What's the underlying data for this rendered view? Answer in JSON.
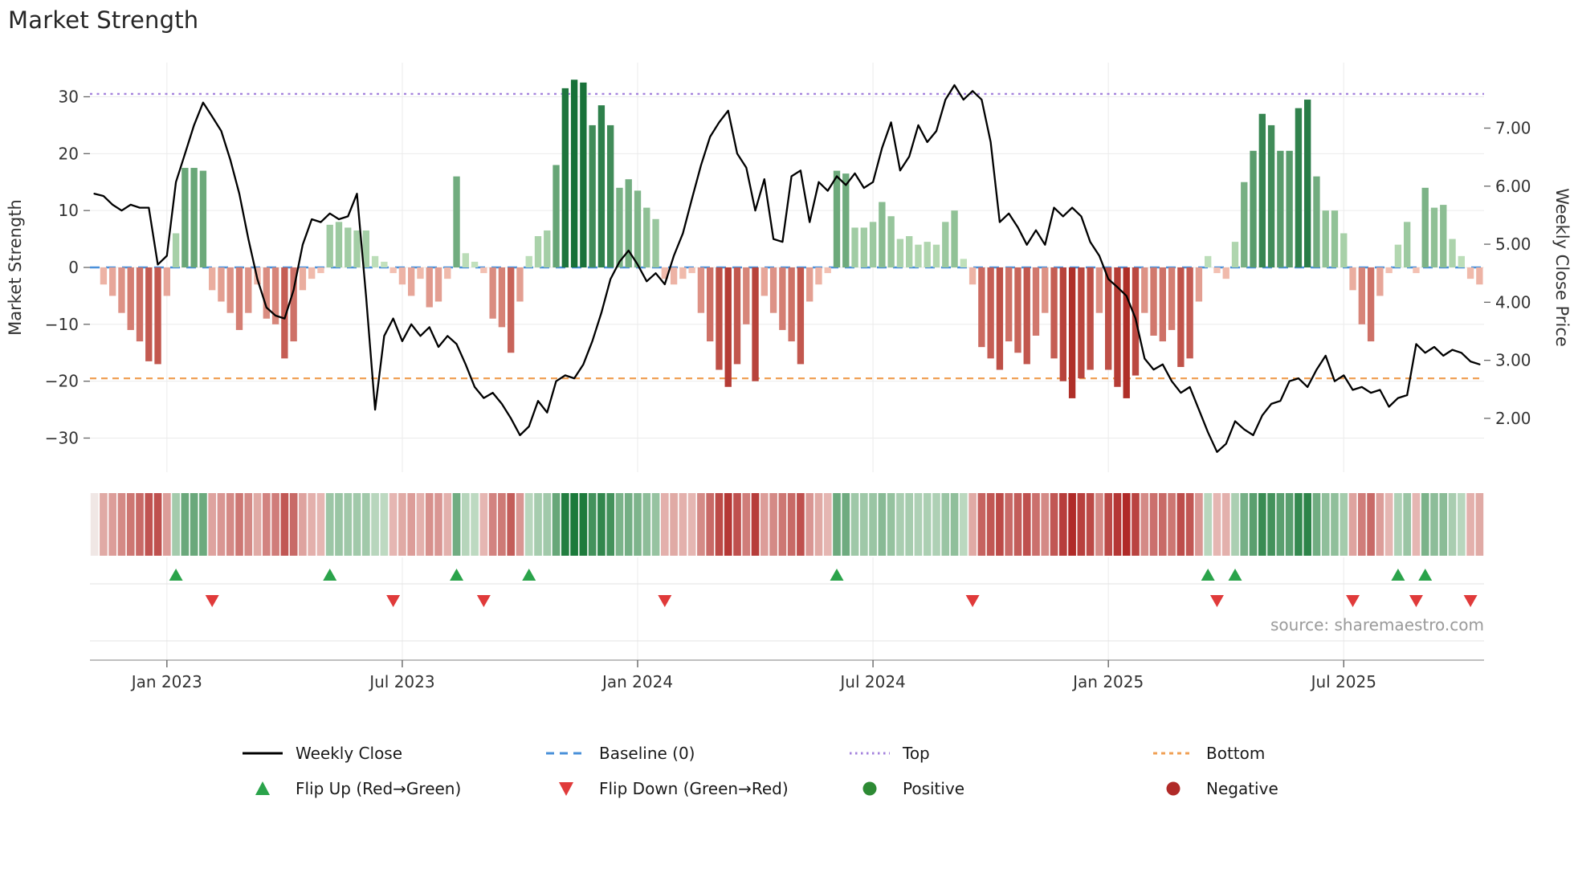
{
  "title": "Market Strength",
  "source": "source: sharemaestro.com",
  "colors": {
    "price_line": "#000000",
    "baseline": "#4a90d9",
    "top_line": "#a583dd",
    "bottom_line": "#f0a055",
    "flip_up": "#2aa34a",
    "flip_down": "#e03a3a",
    "positive_dot": "#2d8a34",
    "negative_dot": "#b02a28",
    "grid": "#ebebeb",
    "axis_text": "#333333",
    "bar_green_dark": "#167038",
    "bar_green_light": "#c7e5c1",
    "bar_red_dark": "#af2f28",
    "bar_red_light": "#f6c7b8"
  },
  "legend": {
    "items": [
      {
        "label": "Weekly Close",
        "glyph": "line",
        "color": "#000000"
      },
      {
        "label": "Baseline (0)",
        "glyph": "dashed-line",
        "color": "#4a90d9",
        "dash": "10 7"
      },
      {
        "label": "Top",
        "glyph": "dotted-line",
        "color": "#a583dd",
        "dash": "2.5 4.5"
      },
      {
        "label": "Bottom",
        "glyph": "dashed-line",
        "color": "#f0a055",
        "dash": "5 5"
      },
      {
        "label": "Flip Up (Red→Green)",
        "glyph": "triangle-up",
        "color": "#2aa34a"
      },
      {
        "label": "Flip Down (Green→Red)",
        "glyph": "triangle-down",
        "color": "#e03a3a"
      },
      {
        "label": "Positive",
        "glyph": "circle",
        "color": "#2d8a34"
      },
      {
        "label": "Negative",
        "glyph": "circle",
        "color": "#b02a28"
      }
    ]
  },
  "chart_data": {
    "type": "bar",
    "subtype": "combo: strength bars (left axis) + weekly close line (right axis) + heatmap strip + flip markers",
    "title": "Market Strength",
    "n_points": 154,
    "x_unit": "week",
    "x_ticks": [
      {
        "i": 8,
        "label": "Jan 2023"
      },
      {
        "i": 34,
        "label": "Jul 2023"
      },
      {
        "i": 60,
        "label": "Jan 2024"
      },
      {
        "i": 86,
        "label": "Jul 2024"
      },
      {
        "i": 112,
        "label": "Jan 2025"
      },
      {
        "i": 138,
        "label": "Jul 2025"
      }
    ],
    "left_axis": {
      "label": "Market Strength",
      "range": [
        -36,
        36
      ],
      "ticks": [
        {
          "v": 30,
          "label": "30"
        },
        {
          "v": 20,
          "label": "20"
        },
        {
          "v": 10,
          "label": "10"
        },
        {
          "v": 0,
          "label": "0"
        },
        {
          "v": -10,
          "label": "−10"
        },
        {
          "v": -20,
          "label": "−20"
        },
        {
          "v": -30,
          "label": "−30"
        }
      ]
    },
    "right_axis": {
      "label": "Weekly Close Price",
      "ticks": [
        {
          "v": 7,
          "label": "7.00"
        },
        {
          "v": 6,
          "label": "6.00"
        },
        {
          "v": 5,
          "label": "5.00"
        },
        {
          "v": 4,
          "label": "4.00"
        },
        {
          "v": 3,
          "label": "3.00"
        },
        {
          "v": 2,
          "label": "2.00"
        }
      ],
      "price_equiv": {
        "zero_price": 4.6,
        "price_per_unit": 0.098
      }
    },
    "reference_lines": [
      {
        "name": "Baseline (0)",
        "value": 0,
        "color": "#4a90d9",
        "dash": "12 8",
        "width": 2.4
      },
      {
        "name": "Top",
        "value": 30.5,
        "color": "#a583dd",
        "dash": "3 5.5",
        "width": 2.4
      },
      {
        "name": "Bottom",
        "value": -19.5,
        "color": "#f0a055",
        "dash": "8 6",
        "width": 2.2
      }
    ],
    "series": [
      {
        "name": "Market Strength",
        "type": "bar",
        "axis": "left",
        "values": [
          0,
          -3,
          -5,
          -8,
          -11,
          -13,
          -16.5,
          -17,
          -5,
          6,
          17.5,
          17.5,
          17,
          -4,
          -6,
          -8,
          -11,
          -8,
          -3,
          -9,
          -10,
          -16,
          -13,
          -4,
          -2,
          -1,
          7.5,
          8,
          7,
          6.5,
          6.5,
          2,
          1,
          -1,
          -3,
          -5,
          -2,
          -7,
          -6,
          -2,
          16,
          2.5,
          1,
          -1,
          -9,
          -10.5,
          -15,
          -6,
          2,
          5.5,
          6.5,
          18,
          31.5,
          33,
          32.5,
          25,
          28.5,
          25,
          14,
          15.5,
          13.5,
          10.5,
          8.5,
          -2,
          -3,
          -2,
          -1,
          -8,
          -13,
          -18,
          -21,
          -17,
          -10,
          -20,
          -5,
          -8,
          -11,
          -13,
          -17,
          -6,
          -3,
          -1,
          17,
          16.5,
          7,
          7,
          8,
          11.5,
          9,
          5,
          5.5,
          4,
          4.5,
          4,
          8,
          10,
          1.5,
          -3,
          -14,
          -16,
          -18,
          -13,
          -15,
          -17,
          -12,
          -8,
          -16,
          -20,
          -23,
          -19.5,
          -18,
          -8,
          -18,
          -21,
          -23,
          -19,
          -8,
          -12,
          -13,
          -11,
          -17.5,
          -16,
          -6,
          2,
          -1,
          -2,
          4.5,
          15,
          20.5,
          27,
          25,
          20.5,
          20.5,
          28,
          29.5,
          16,
          10,
          10,
          6,
          -4,
          -10,
          -13,
          -5,
          -1,
          4,
          8,
          -1,
          14,
          10.5,
          11,
          5,
          2,
          -2,
          -3
        ]
      },
      {
        "name": "Weekly Close",
        "type": "line",
        "axis": "right",
        "values": [
          5.87,
          5.83,
          5.68,
          5.58,
          5.68,
          5.63,
          5.63,
          4.65,
          4.8,
          6.07,
          6.56,
          7.05,
          7.44,
          7.2,
          6.95,
          6.46,
          5.87,
          5.09,
          4.4,
          3.91,
          3.77,
          3.72,
          4.21,
          4.99,
          5.43,
          5.38,
          5.53,
          5.43,
          5.48,
          5.87,
          4.11,
          2.15,
          3.42,
          3.72,
          3.33,
          3.62,
          3.42,
          3.57,
          3.23,
          3.42,
          3.28,
          2.93,
          2.54,
          2.35,
          2.44,
          2.25,
          2.0,
          1.71,
          1.86,
          2.3,
          2.1,
          2.64,
          2.74,
          2.69,
          2.93,
          3.33,
          3.82,
          4.4,
          4.7,
          4.89,
          4.65,
          4.36,
          4.5,
          4.31,
          4.8,
          5.19,
          5.78,
          6.36,
          6.85,
          7.1,
          7.3,
          6.56,
          6.32,
          5.58,
          6.12,
          5.09,
          5.04,
          6.17,
          6.27,
          5.38,
          6.07,
          5.92,
          6.17,
          6.02,
          6.22,
          5.97,
          6.07,
          6.66,
          7.1,
          6.27,
          6.51,
          7.05,
          6.76,
          6.95,
          7.49,
          7.74,
          7.49,
          7.64,
          7.49,
          6.76,
          5.38,
          5.53,
          5.29,
          4.99,
          5.24,
          4.99,
          5.63,
          5.48,
          5.63,
          5.48,
          5.04,
          4.8,
          4.4,
          4.26,
          4.11,
          3.72,
          3.03,
          2.84,
          2.93,
          2.64,
          2.44,
          2.54,
          2.15,
          1.76,
          1.42,
          1.56,
          1.95,
          1.81,
          1.71,
          2.05,
          2.25,
          2.3,
          2.64,
          2.69,
          2.54,
          2.84,
          3.08,
          2.64,
          2.74,
          2.49,
          2.54,
          2.44,
          2.49,
          2.2,
          2.35,
          2.4,
          3.28,
          3.13,
          3.23,
          3.08,
          3.18,
          3.13,
          2.98,
          2.93
        ]
      }
    ],
    "heatmap": {
      "description": "color strip under main plot; same weekly Market Strength values rendered as red-green intensity cells",
      "source_series": "Market Strength"
    },
    "markers": {
      "flip_up_rule": "Market Strength sign change negative to positive (green up triangle, upper row)",
      "flip_down_rule": "Market Strength sign change positive to negative (red down triangle, lower row)"
    }
  }
}
